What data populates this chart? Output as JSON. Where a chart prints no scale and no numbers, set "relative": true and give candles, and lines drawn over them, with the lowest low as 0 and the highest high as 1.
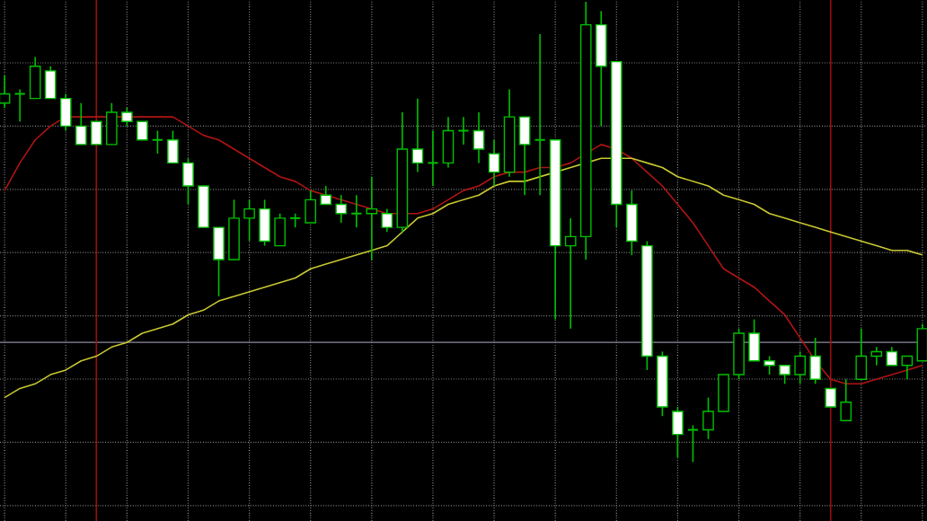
{
  "chart_data": {
    "type": "candlestick",
    "relative": true,
    "grid": true,
    "tick_labels": false,
    "color": "#00c000",
    "categories": [
      null,
      null,
      null,
      null,
      null,
      null,
      null,
      null,
      null,
      null,
      null,
      null,
      null,
      null,
      null,
      null,
      null,
      null,
      null,
      null,
      null,
      null,
      null,
      null,
      null,
      null,
      null,
      null,
      null,
      null,
      null,
      null,
      null,
      null,
      null,
      null,
      null,
      null,
      null,
      null,
      null,
      null,
      null,
      null,
      null,
      null,
      null,
      null,
      null,
      null,
      null,
      null,
      null,
      null,
      null,
      null,
      null,
      null,
      null,
      null,
      null
    ],
    "ohlc": [
      [
        0.78,
        0.84,
        0.77,
        0.8
      ],
      [
        0.8,
        0.81,
        0.74,
        0.8
      ],
      [
        0.79,
        0.88,
        0.79,
        0.86
      ],
      [
        0.85,
        0.86,
        0.79,
        0.79
      ],
      [
        0.79,
        0.8,
        0.72,
        0.73
      ],
      [
        0.73,
        0.78,
        0.69,
        0.69
      ],
      [
        0.74,
        0.74,
        0.69,
        0.69
      ],
      [
        0.69,
        0.78,
        0.69,
        0.76
      ],
      [
        0.76,
        0.77,
        0.73,
        0.74
      ],
      [
        0.74,
        0.74,
        0.7,
        0.7
      ],
      [
        0.7,
        0.72,
        0.67,
        0.7
      ],
      [
        0.7,
        0.72,
        0.65,
        0.65
      ],
      [
        0.65,
        0.66,
        0.56,
        0.6
      ],
      [
        0.6,
        0.6,
        0.51,
        0.51
      ],
      [
        0.51,
        0.51,
        0.36,
        0.44
      ],
      [
        0.44,
        0.57,
        0.44,
        0.53
      ],
      [
        0.53,
        0.57,
        0.48,
        0.55
      ],
      [
        0.55,
        0.57,
        0.47,
        0.48
      ],
      [
        0.47,
        0.54,
        0.47,
        0.53
      ],
      [
        0.53,
        0.54,
        0.51,
        0.53
      ],
      [
        0.52,
        0.59,
        0.52,
        0.57
      ],
      [
        0.58,
        0.6,
        0.56,
        0.56
      ],
      [
        0.56,
        0.58,
        0.52,
        0.54
      ],
      [
        0.54,
        0.58,
        0.51,
        0.54
      ],
      [
        0.54,
        0.62,
        0.44,
        0.55
      ],
      [
        0.54,
        0.55,
        0.5,
        0.51
      ],
      [
        0.51,
        0.76,
        0.5,
        0.68
      ],
      [
        0.68,
        0.79,
        0.63,
        0.65
      ],
      [
        0.65,
        0.72,
        0.6,
        0.65
      ],
      [
        0.65,
        0.75,
        0.64,
        0.72
      ],
      [
        0.72,
        0.75,
        0.69,
        0.72
      ],
      [
        0.72,
        0.76,
        0.65,
        0.68
      ],
      [
        0.67,
        0.7,
        0.6,
        0.63
      ],
      [
        0.63,
        0.81,
        0.62,
        0.75
      ],
      [
        0.75,
        0.75,
        0.58,
        0.69
      ],
      [
        0.7,
        0.93,
        0.58,
        0.7
      ],
      [
        0.7,
        0.7,
        0.31,
        0.47
      ],
      [
        0.47,
        0.53,
        0.29,
        0.49
      ],
      [
        0.49,
        1.0,
        0.44,
        0.95
      ],
      [
        0.95,
        0.98,
        0.73,
        0.86
      ],
      [
        0.87,
        0.87,
        0.51,
        0.56
      ],
      [
        0.56,
        0.59,
        0.45,
        0.48
      ],
      [
        0.47,
        0.48,
        0.2,
        0.23
      ],
      [
        0.23,
        0.24,
        0.1,
        0.12
      ],
      [
        0.11,
        0.12,
        0.01,
        0.06
      ],
      [
        0.07,
        0.08,
        0.0,
        0.07
      ],
      [
        0.07,
        0.14,
        0.05,
        0.11
      ],
      [
        0.11,
        0.19,
        0.11,
        0.19
      ],
      [
        0.19,
        0.29,
        0.18,
        0.28
      ],
      [
        0.28,
        0.31,
        0.22,
        0.22
      ],
      [
        0.22,
        0.23,
        0.19,
        0.21
      ],
      [
        0.21,
        0.21,
        0.17,
        0.19
      ],
      [
        0.19,
        0.24,
        0.17,
        0.23
      ],
      [
        0.23,
        0.27,
        0.17,
        0.18
      ],
      [
        0.16,
        0.16,
        0.12,
        0.12
      ],
      [
        0.09,
        0.18,
        0.09,
        0.13
      ],
      [
        0.18,
        0.29,
        0.18,
        0.23
      ],
      [
        0.23,
        0.25,
        0.21,
        0.24
      ],
      [
        0.24,
        0.25,
        0.21,
        0.21
      ],
      [
        0.21,
        0.23,
        0.18,
        0.23
      ],
      [
        0.22,
        0.3,
        0.22,
        0.29
      ]
    ],
    "ref_lines": [
      {
        "axis": "y",
        "value": 0.26,
        "color": "#8c8ca0"
      }
    ],
    "series": [
      {
        "type": "line",
        "color": "#b01414",
        "values": [
          0.59,
          0.65,
          0.7,
          0.73,
          0.75,
          0.75,
          0.75,
          0.75,
          0.75,
          0.75,
          0.75,
          0.75,
          0.73,
          0.71,
          0.7,
          0.68,
          0.66,
          0.64,
          0.62,
          0.61,
          0.59,
          0.58,
          0.57,
          0.56,
          0.55,
          0.54,
          0.54,
          0.54,
          0.55,
          0.57,
          0.59,
          0.6,
          0.62,
          0.63,
          0.63,
          0.64,
          0.64,
          0.65,
          0.67,
          0.69,
          0.68,
          0.66,
          0.63,
          0.6,
          0.56,
          0.52,
          0.47,
          0.42,
          0.4,
          0.38,
          0.35,
          0.32,
          0.27,
          0.22,
          0.18,
          0.17,
          0.17,
          0.18,
          0.19,
          0.2,
          0.21
        ]
      },
      {
        "type": "line",
        "color": "#c8c832",
        "values": [
          0.14,
          0.16,
          0.17,
          0.19,
          0.2,
          0.22,
          0.23,
          0.25,
          0.26,
          0.28,
          0.29,
          0.3,
          0.32,
          0.33,
          0.35,
          0.36,
          0.37,
          0.38,
          0.39,
          0.4,
          0.42,
          0.43,
          0.44,
          0.45,
          0.46,
          0.47,
          0.5,
          0.53,
          0.54,
          0.56,
          0.57,
          0.58,
          0.6,
          0.61,
          0.61,
          0.62,
          0.63,
          0.64,
          0.65,
          0.66,
          0.66,
          0.66,
          0.65,
          0.64,
          0.62,
          0.61,
          0.6,
          0.58,
          0.57,
          0.56,
          0.54,
          0.53,
          0.52,
          0.51,
          0.5,
          0.49,
          0.48,
          0.47,
          0.46,
          0.46,
          0.45
        ]
      }
    ]
  }
}
